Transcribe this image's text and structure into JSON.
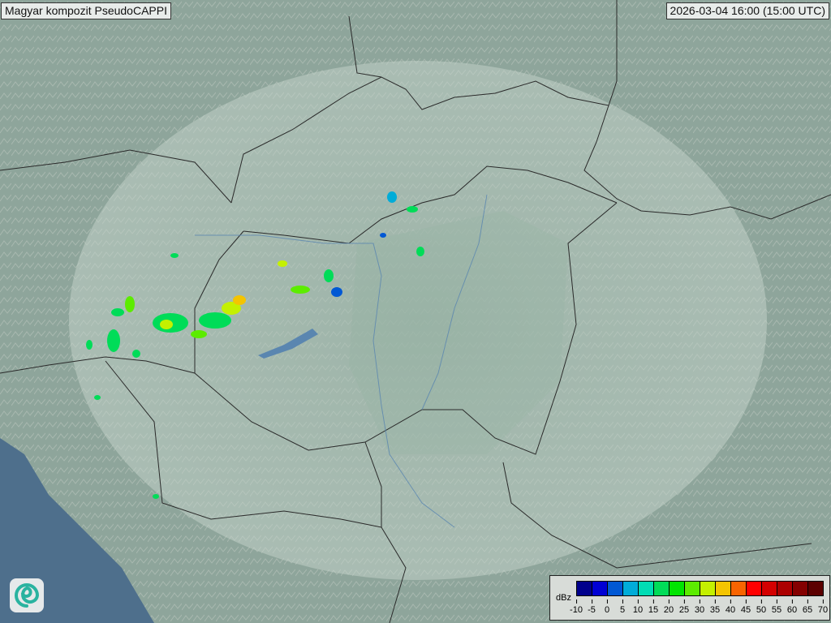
{
  "title": "Magyar kompozit  PseudoCAPPI",
  "timestamp": "2026-03-04 16:00 (15:00 UTC)",
  "logo": {
    "icon": "swirl-logo-icon"
  },
  "legend": {
    "unit": "dBz",
    "ticks": [
      "-10",
      "-5",
      "0",
      "5",
      "10",
      "15",
      "20",
      "25",
      "30",
      "35",
      "40",
      "45",
      "50",
      "55",
      "60",
      "65",
      "70"
    ],
    "colors": [
      "#00008c",
      "#0000d4",
      "#0058d4",
      "#00acd8",
      "#00dcb4",
      "#00dc58",
      "#00e400",
      "#5cec00",
      "#c4f000",
      "#f4c400",
      "#f86400",
      "#ff0000",
      "#d40000",
      "#ac0000",
      "#840000",
      "#5c0000"
    ]
  },
  "colors": {
    "radar_coverage": "#dfe8e2",
    "sea": "#4e6f8c",
    "borders": "#2a2a2a"
  }
}
